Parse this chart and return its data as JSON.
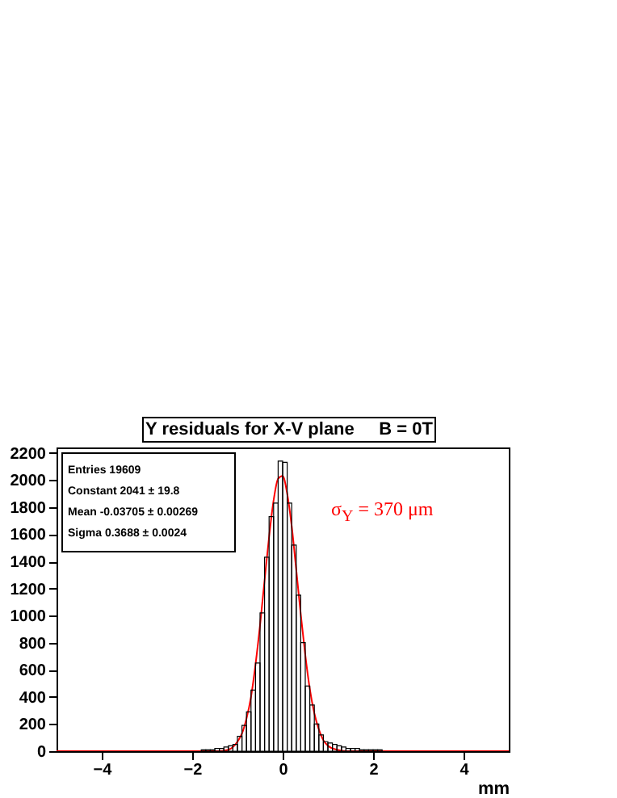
{
  "chart_data": {
    "type": "histogram",
    "title": "Y residuals for X-V plane     B = 0T",
    "xlabel": "mm",
    "xlim": [
      -5,
      5
    ],
    "xticks": [
      -4,
      -2,
      0,
      2,
      4
    ],
    "ylim": [
      0,
      2240
    ],
    "yticks": [
      0,
      200,
      400,
      600,
      800,
      1000,
      1200,
      1400,
      1600,
      1800,
      2000,
      2200
    ],
    "grid": false,
    "series": [
      {
        "color": "#000000",
        "bins": [
          -1.8,
          -1.7,
          -1.6,
          -1.5,
          -1.4,
          -1.3,
          -1.2,
          -1.1,
          -1.0,
          -0.9,
          -0.8,
          -0.7,
          -0.6,
          -0.5,
          -0.4,
          -0.3,
          -0.2,
          -0.1,
          0.0,
          0.1,
          0.2,
          0.3,
          0.4,
          0.5,
          0.6,
          0.7,
          0.8,
          0.9,
          1.0,
          1.1,
          1.2,
          1.3,
          1.4,
          1.5,
          1.6,
          1.7,
          1.8,
          1.9,
          2.0,
          2.1,
          2.2
        ],
        "values": [
          10,
          10,
          10,
          20,
          20,
          30,
          40,
          50,
          110,
          190,
          290,
          450,
          650,
          1020,
          1430,
          1730,
          1830,
          2140,
          2130,
          1830,
          1520,
          1150,
          800,
          480,
          340,
          200,
          120,
          70,
          60,
          50,
          40,
          30,
          20,
          20,
          20,
          10,
          10,
          10,
          10,
          10
        ]
      },
      {
        "type": "line",
        "color": "#ff0000",
        "x": [
          -5,
          -1.4,
          -1.2,
          -1.0,
          -0.9,
          -0.8,
          -0.7,
          -0.6,
          -0.5,
          -0.4,
          -0.3,
          -0.2,
          -0.1,
          0,
          0.1,
          0.2,
          0.3,
          0.4,
          0.5,
          0.6,
          0.7,
          0.8,
          0.9,
          1.0,
          1.2,
          1.4,
          5
        ],
        "values": [
          0,
          0,
          10,
          70,
          130,
          240,
          400,
          640,
          930,
          1260,
          1580,
          1850,
          2010,
          2030,
          1900,
          1660,
          1340,
          1010,
          710,
          460,
          280,
          160,
          80,
          40,
          10,
          0,
          0
        ]
      }
    ],
    "annotations": [
      "Entries 19609",
      "Constant 2041 ± 19.8",
      "Mean -0.03705 ± 0.00269",
      "Sigma 0.3688 ± 0.0024",
      "σ$_{Y}$ = 370 μm"
    ]
  }
}
